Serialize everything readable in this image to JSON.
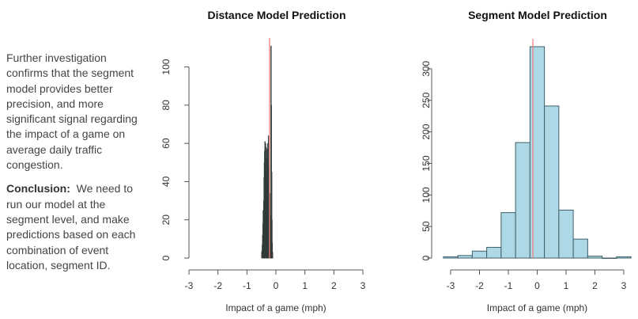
{
  "text": {
    "intro": "Further investigation confirms that the segment model provides better precision, and more significant signal regarding the impact of a game on average daily traffic congestion.",
    "conclusion_label": "Conclusion:",
    "conclusion_body": "We need to run our model at the segment level, and make predictions based on each combination of event location, segment ID."
  },
  "colors": {
    "bar_fill": "#add8e6",
    "bar_stroke": "#3f5f6a",
    "dense_bar": "#3d4a48",
    "ref_line": "#f08080",
    "axis": "#555555"
  },
  "chart_data": [
    {
      "type": "bar",
      "title": "Distance Model Prediction",
      "xlabel": "Impact of a game (mph)",
      "ylabel": "",
      "xlim": [
        -3,
        3
      ],
      "ylim": [
        0,
        111
      ],
      "xticks": [
        -3,
        -2,
        -1,
        0,
        1,
        2,
        3
      ],
      "yticks": [
        0,
        20,
        40,
        60,
        80,
        100
      ],
      "ref_line_x": -0.22,
      "bin_width": 0.01,
      "bins": [
        {
          "x": -0.5,
          "y": 3
        },
        {
          "x": -0.49,
          "y": 4
        },
        {
          "x": -0.48,
          "y": 7
        },
        {
          "x": -0.47,
          "y": 12
        },
        {
          "x": -0.46,
          "y": 18
        },
        {
          "x": -0.45,
          "y": 25
        },
        {
          "x": -0.44,
          "y": 22
        },
        {
          "x": -0.43,
          "y": 30
        },
        {
          "x": -0.42,
          "y": 42
        },
        {
          "x": -0.41,
          "y": 50
        },
        {
          "x": -0.4,
          "y": 56
        },
        {
          "x": -0.39,
          "y": 61
        },
        {
          "x": -0.38,
          "y": 55
        },
        {
          "x": -0.37,
          "y": 60
        },
        {
          "x": -0.36,
          "y": 46
        },
        {
          "x": -0.35,
          "y": 58
        },
        {
          "x": -0.34,
          "y": 52
        },
        {
          "x": -0.33,
          "y": 45
        },
        {
          "x": -0.32,
          "y": 40
        },
        {
          "x": -0.31,
          "y": 57
        },
        {
          "x": -0.3,
          "y": 36
        },
        {
          "x": -0.29,
          "y": 60
        },
        {
          "x": -0.28,
          "y": 52
        },
        {
          "x": -0.27,
          "y": 64
        },
        {
          "x": -0.26,
          "y": 38
        },
        {
          "x": -0.25,
          "y": 48
        },
        {
          "x": -0.24,
          "y": 30
        },
        {
          "x": -0.23,
          "y": 25
        },
        {
          "x": -0.22,
          "y": 34
        },
        {
          "x": -0.21,
          "y": 18
        },
        {
          "x": -0.2,
          "y": 22
        },
        {
          "x": -0.19,
          "y": 12
        },
        {
          "x": -0.18,
          "y": 111
        },
        {
          "x": -0.17,
          "y": 80
        },
        {
          "x": -0.16,
          "y": 45
        },
        {
          "x": -0.15,
          "y": 20
        },
        {
          "x": -0.14,
          "y": 8
        },
        {
          "x": -0.13,
          "y": 3
        }
      ]
    },
    {
      "type": "bar",
      "title": "Segment Model Prediction",
      "xlabel": "Impact of a game (mph)",
      "ylabel": "",
      "xlim": [
        -3.25,
        3
      ],
      "ylim": [
        0,
        335
      ],
      "xticks": [
        -3,
        -2,
        -1,
        0,
        1,
        2,
        3
      ],
      "yticks": [
        0,
        50,
        100,
        150,
        200,
        250,
        300
      ],
      "ref_line_x": -0.15,
      "bins": [
        {
          "x0": -3.25,
          "x1": -2.75,
          "y": 2
        },
        {
          "x0": -2.75,
          "x1": -2.25,
          "y": 4
        },
        {
          "x0": -2.25,
          "x1": -1.75,
          "y": 11
        },
        {
          "x0": -1.75,
          "x1": -1.25,
          "y": 17
        },
        {
          "x0": -1.25,
          "x1": -0.75,
          "y": 72
        },
        {
          "x0": -0.75,
          "x1": -0.25,
          "y": 183
        },
        {
          "x0": -0.25,
          "x1": 0.25,
          "y": 335
        },
        {
          "x0": 0.25,
          "x1": 0.75,
          "y": 241
        },
        {
          "x0": 0.75,
          "x1": 1.25,
          "y": 76
        },
        {
          "x0": 1.25,
          "x1": 1.75,
          "y": 30
        },
        {
          "x0": 1.75,
          "x1": 2.25,
          "y": 3
        },
        {
          "x0": 2.25,
          "x1": 2.75,
          "y": 0
        },
        {
          "x0": 2.75,
          "x1": 3.25,
          "y": 2
        }
      ]
    }
  ]
}
